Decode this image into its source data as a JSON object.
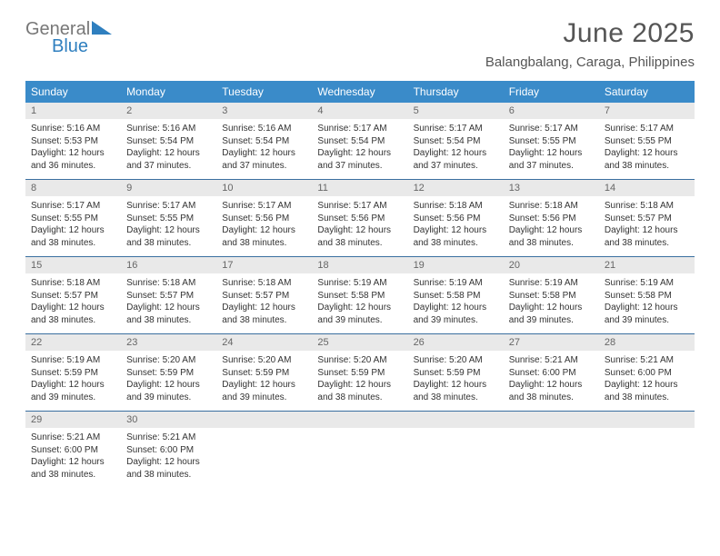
{
  "logo": {
    "text_general": "General",
    "text_blue": "Blue",
    "color_gray": "#777777",
    "color_blue": "#2f7fbf"
  },
  "header": {
    "month_title": "June 2025",
    "location": "Balangbalang, Caraga, Philippines"
  },
  "styles": {
    "header_bg": "#3a8bc9",
    "header_text": "#ffffff",
    "daynum_bg": "#e9e9e9",
    "daynum_text": "#666666",
    "cell_text": "#333333",
    "divider": "#3a6fa0",
    "title_color": "#555555",
    "title_fontsize": 30,
    "location_fontsize": 15,
    "dayheader_fontsize": 12,
    "daynum_fontsize": 11,
    "cell_fontsize": 10
  },
  "day_names": [
    "Sunday",
    "Monday",
    "Tuesday",
    "Wednesday",
    "Thursday",
    "Friday",
    "Saturday"
  ],
  "weeks": [
    [
      {
        "n": "1",
        "sunrise": "Sunrise: 5:16 AM",
        "sunset": "Sunset: 5:53 PM",
        "daylight": "Daylight: 12 hours and 36 minutes."
      },
      {
        "n": "2",
        "sunrise": "Sunrise: 5:16 AM",
        "sunset": "Sunset: 5:54 PM",
        "daylight": "Daylight: 12 hours and 37 minutes."
      },
      {
        "n": "3",
        "sunrise": "Sunrise: 5:16 AM",
        "sunset": "Sunset: 5:54 PM",
        "daylight": "Daylight: 12 hours and 37 minutes."
      },
      {
        "n": "4",
        "sunrise": "Sunrise: 5:17 AM",
        "sunset": "Sunset: 5:54 PM",
        "daylight": "Daylight: 12 hours and 37 minutes."
      },
      {
        "n": "5",
        "sunrise": "Sunrise: 5:17 AM",
        "sunset": "Sunset: 5:54 PM",
        "daylight": "Daylight: 12 hours and 37 minutes."
      },
      {
        "n": "6",
        "sunrise": "Sunrise: 5:17 AM",
        "sunset": "Sunset: 5:55 PM",
        "daylight": "Daylight: 12 hours and 37 minutes."
      },
      {
        "n": "7",
        "sunrise": "Sunrise: 5:17 AM",
        "sunset": "Sunset: 5:55 PM",
        "daylight": "Daylight: 12 hours and 38 minutes."
      }
    ],
    [
      {
        "n": "8",
        "sunrise": "Sunrise: 5:17 AM",
        "sunset": "Sunset: 5:55 PM",
        "daylight": "Daylight: 12 hours and 38 minutes."
      },
      {
        "n": "9",
        "sunrise": "Sunrise: 5:17 AM",
        "sunset": "Sunset: 5:55 PM",
        "daylight": "Daylight: 12 hours and 38 minutes."
      },
      {
        "n": "10",
        "sunrise": "Sunrise: 5:17 AM",
        "sunset": "Sunset: 5:56 PM",
        "daylight": "Daylight: 12 hours and 38 minutes."
      },
      {
        "n": "11",
        "sunrise": "Sunrise: 5:17 AM",
        "sunset": "Sunset: 5:56 PM",
        "daylight": "Daylight: 12 hours and 38 minutes."
      },
      {
        "n": "12",
        "sunrise": "Sunrise: 5:18 AM",
        "sunset": "Sunset: 5:56 PM",
        "daylight": "Daylight: 12 hours and 38 minutes."
      },
      {
        "n": "13",
        "sunrise": "Sunrise: 5:18 AM",
        "sunset": "Sunset: 5:56 PM",
        "daylight": "Daylight: 12 hours and 38 minutes."
      },
      {
        "n": "14",
        "sunrise": "Sunrise: 5:18 AM",
        "sunset": "Sunset: 5:57 PM",
        "daylight": "Daylight: 12 hours and 38 minutes."
      }
    ],
    [
      {
        "n": "15",
        "sunrise": "Sunrise: 5:18 AM",
        "sunset": "Sunset: 5:57 PM",
        "daylight": "Daylight: 12 hours and 38 minutes."
      },
      {
        "n": "16",
        "sunrise": "Sunrise: 5:18 AM",
        "sunset": "Sunset: 5:57 PM",
        "daylight": "Daylight: 12 hours and 38 minutes."
      },
      {
        "n": "17",
        "sunrise": "Sunrise: 5:18 AM",
        "sunset": "Sunset: 5:57 PM",
        "daylight": "Daylight: 12 hours and 38 minutes."
      },
      {
        "n": "18",
        "sunrise": "Sunrise: 5:19 AM",
        "sunset": "Sunset: 5:58 PM",
        "daylight": "Daylight: 12 hours and 39 minutes."
      },
      {
        "n": "19",
        "sunrise": "Sunrise: 5:19 AM",
        "sunset": "Sunset: 5:58 PM",
        "daylight": "Daylight: 12 hours and 39 minutes."
      },
      {
        "n": "20",
        "sunrise": "Sunrise: 5:19 AM",
        "sunset": "Sunset: 5:58 PM",
        "daylight": "Daylight: 12 hours and 39 minutes."
      },
      {
        "n": "21",
        "sunrise": "Sunrise: 5:19 AM",
        "sunset": "Sunset: 5:58 PM",
        "daylight": "Daylight: 12 hours and 39 minutes."
      }
    ],
    [
      {
        "n": "22",
        "sunrise": "Sunrise: 5:19 AM",
        "sunset": "Sunset: 5:59 PM",
        "daylight": "Daylight: 12 hours and 39 minutes."
      },
      {
        "n": "23",
        "sunrise": "Sunrise: 5:20 AM",
        "sunset": "Sunset: 5:59 PM",
        "daylight": "Daylight: 12 hours and 39 minutes."
      },
      {
        "n": "24",
        "sunrise": "Sunrise: 5:20 AM",
        "sunset": "Sunset: 5:59 PM",
        "daylight": "Daylight: 12 hours and 39 minutes."
      },
      {
        "n": "25",
        "sunrise": "Sunrise: 5:20 AM",
        "sunset": "Sunset: 5:59 PM",
        "daylight": "Daylight: 12 hours and 38 minutes."
      },
      {
        "n": "26",
        "sunrise": "Sunrise: 5:20 AM",
        "sunset": "Sunset: 5:59 PM",
        "daylight": "Daylight: 12 hours and 38 minutes."
      },
      {
        "n": "27",
        "sunrise": "Sunrise: 5:21 AM",
        "sunset": "Sunset: 6:00 PM",
        "daylight": "Daylight: 12 hours and 38 minutes."
      },
      {
        "n": "28",
        "sunrise": "Sunrise: 5:21 AM",
        "sunset": "Sunset: 6:00 PM",
        "daylight": "Daylight: 12 hours and 38 minutes."
      }
    ],
    [
      {
        "n": "29",
        "sunrise": "Sunrise: 5:21 AM",
        "sunset": "Sunset: 6:00 PM",
        "daylight": "Daylight: 12 hours and 38 minutes."
      },
      {
        "n": "30",
        "sunrise": "Sunrise: 5:21 AM",
        "sunset": "Sunset: 6:00 PM",
        "daylight": "Daylight: 12 hours and 38 minutes."
      },
      {
        "n": "",
        "sunrise": "",
        "sunset": "",
        "daylight": ""
      },
      {
        "n": "",
        "sunrise": "",
        "sunset": "",
        "daylight": ""
      },
      {
        "n": "",
        "sunrise": "",
        "sunset": "",
        "daylight": ""
      },
      {
        "n": "",
        "sunrise": "",
        "sunset": "",
        "daylight": ""
      },
      {
        "n": "",
        "sunrise": "",
        "sunset": "",
        "daylight": ""
      }
    ]
  ]
}
